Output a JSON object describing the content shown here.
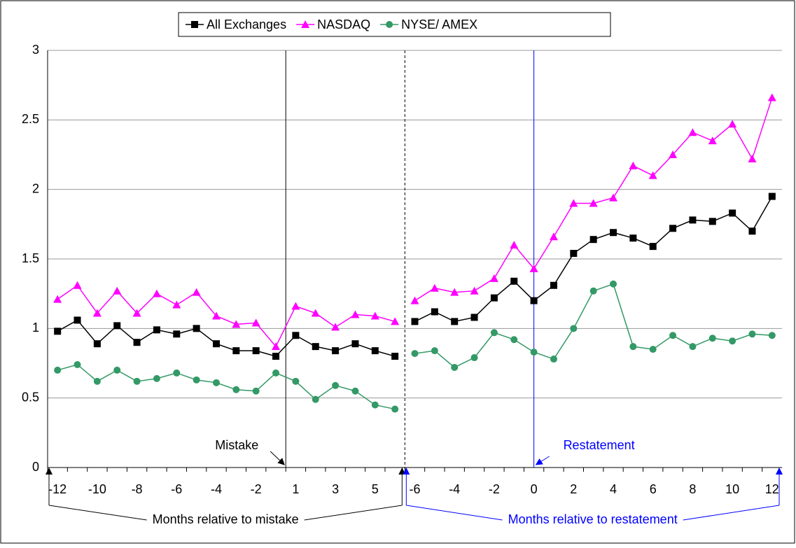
{
  "chart_data": {
    "type": "line",
    "groups": [
      {
        "label": "Months relative to mistake",
        "color": "#000000",
        "categories": [
          -12,
          null,
          -10,
          null,
          -8,
          null,
          -6,
          null,
          -4,
          null,
          -2,
          null,
          1,
          null,
          3,
          null,
          5,
          null
        ]
      },
      {
        "label": "Months relative to restatement",
        "color": "#0000ff",
        "categories": [
          -6,
          null,
          -4,
          null,
          -2,
          null,
          0,
          null,
          2,
          null,
          4,
          null,
          6,
          null,
          8,
          null,
          10,
          null,
          12
        ]
      }
    ],
    "series": [
      {
        "name": "All Exchanges",
        "color": "#000000",
        "marker": "square",
        "values": [
          [
            0.98,
            1.06,
            0.89,
            1.02,
            0.9,
            0.99,
            0.96,
            1.0,
            0.89,
            0.84,
            0.84,
            0.8,
            0.95,
            0.87,
            0.84,
            0.89,
            0.84,
            0.8
          ],
          [
            1.05,
            1.12,
            1.05,
            1.08,
            1.22,
            1.34,
            1.2,
            1.31,
            1.54,
            1.64,
            1.69,
            1.65,
            1.59,
            1.72,
            1.78,
            1.77,
            1.83,
            1.7,
            1.95
          ]
        ]
      },
      {
        "name": "NASDAQ",
        "color": "#ff00ff",
        "marker": "triangle",
        "values": [
          [
            1.21,
            1.31,
            1.11,
            1.27,
            1.11,
            1.25,
            1.17,
            1.26,
            1.09,
            1.03,
            1.04,
            0.87,
            1.16,
            1.11,
            1.01,
            1.1,
            1.09,
            1.05
          ],
          [
            1.2,
            1.29,
            1.26,
            1.27,
            1.36,
            1.6,
            1.43,
            1.66,
            1.9,
            1.9,
            1.94,
            2.17,
            2.1,
            2.25,
            2.41,
            2.35,
            2.47,
            2.22,
            2.66
          ]
        ]
      },
      {
        "name": "NYSE/ AMEX",
        "color": "#339966",
        "marker": "circle",
        "values": [
          [
            0.7,
            0.74,
            0.62,
            0.7,
            0.62,
            0.64,
            0.68,
            0.63,
            0.61,
            0.56,
            0.55,
            0.68,
            0.62,
            0.49,
            0.59,
            0.55,
            0.45,
            0.42
          ],
          [
            0.82,
            0.84,
            0.72,
            0.79,
            0.97,
            0.92,
            0.83,
            0.78,
            1.0,
            1.27,
            1.32,
            0.87,
            0.85,
            0.95,
            0.87,
            0.93,
            0.91,
            0.96,
            0.95
          ]
        ]
      }
    ],
    "ylim": [
      0,
      3
    ],
    "yticks": [
      0,
      0.5,
      1,
      1.5,
      2,
      2.5,
      3
    ],
    "grid": true,
    "legend": "top",
    "annotations": [
      {
        "text": "Mistake",
        "color": "#000000"
      },
      {
        "text": "Restatement",
        "color": "#0000ff"
      }
    ]
  }
}
